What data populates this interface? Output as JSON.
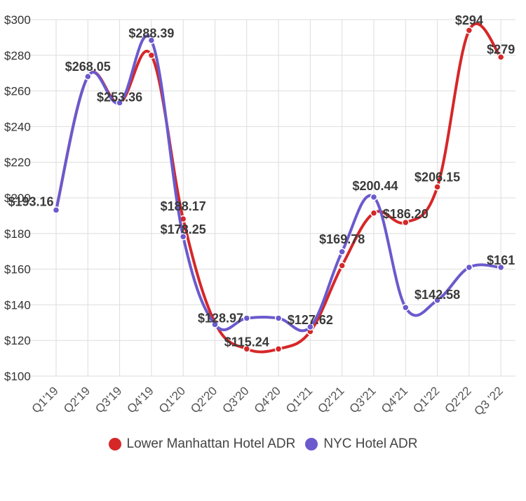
{
  "chart_data": {
    "type": "line",
    "categories": [
      "Q1'19",
      "Q2'19",
      "Q3'19",
      "Q4'19",
      "Q1'20",
      "Q2'20",
      "Q3'20",
      "Q4'20",
      "Q1'21",
      "Q2'21",
      "Q3'21",
      "Q4'21",
      "Q1'22",
      "Q2'22",
      "Q3 '22"
    ],
    "ylim": [
      100,
      300
    ],
    "yticks": [
      100,
      120,
      140,
      160,
      180,
      200,
      220,
      240,
      260,
      280,
      300
    ],
    "ytick_labels": [
      "$100",
      "$120",
      "$140",
      "$160",
      "$180",
      "$200",
      "$220",
      "$240",
      "$260",
      "$280",
      "$300"
    ],
    "grid": true,
    "legend_position": "bottom",
    "series": [
      {
        "name": "Lower Manhattan Hotel ADR",
        "color": "#d62728",
        "values": [
          193.16,
          268.05,
          253.36,
          280,
          188.17,
          130,
          115.24,
          115.24,
          125,
          162,
          191.5,
          186.2,
          206.15,
          294,
          279
        ],
        "labels": [
          null,
          null,
          null,
          null,
          "$188.17",
          null,
          "$115.24",
          null,
          null,
          null,
          null,
          "$186.20",
          "$206.15",
          "$294",
          "$279"
        ]
      },
      {
        "name": "NYC Hotel ADR",
        "color": "#6a5acd",
        "values": [
          193.16,
          268.05,
          253.36,
          288.39,
          178.25,
          128.97,
          132.5,
          132.5,
          127.62,
          169.78,
          200.44,
          138.5,
          142.58,
          161,
          161
        ],
        "labels": [
          "$193.16",
          "$268.05",
          "$253.36",
          "$288.39",
          "$178.25",
          "$128.97",
          null,
          null,
          "$127.62",
          "$169.78",
          "$200.44",
          null,
          "$142.58",
          null,
          "$161"
        ]
      }
    ]
  }
}
